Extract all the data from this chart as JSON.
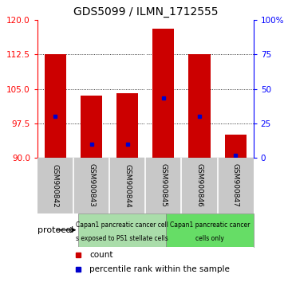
{
  "title": "GDS5099 / ILMN_1712555",
  "samples": [
    "GSM900842",
    "GSM900843",
    "GSM900844",
    "GSM900845",
    "GSM900846",
    "GSM900847"
  ],
  "bar_bottom": 90,
  "bar_tops": [
    112.5,
    103.5,
    104.0,
    118.0,
    112.5,
    95.0
  ],
  "percentile_values": [
    99.0,
    93.0,
    93.0,
    103.0,
    99.0,
    90.5
  ],
  "ylim": [
    90,
    120
  ],
  "y2lim": [
    0,
    100
  ],
  "yticks": [
    90,
    97.5,
    105,
    112.5,
    120
  ],
  "y2ticks": [
    0,
    25,
    50,
    75,
    100
  ],
  "bar_color": "#cc0000",
  "percentile_color": "#0000cc",
  "group1_label_line1": "Capan1 pancreatic cancer cell",
  "group1_label_line2": "s exposed to PS1 stellate cells",
  "group2_label_line1": "Capan1 pancreatic cancer",
  "group2_label_line2": "cells only",
  "group1_color": "#aaddaa",
  "group2_color": "#66dd66",
  "legend_count_label": "count",
  "legend_pct_label": "percentile rank within the sample",
  "protocol_label": "protocol",
  "bg_plot": "#ffffff",
  "bg_xtick": "#c8c8c8"
}
